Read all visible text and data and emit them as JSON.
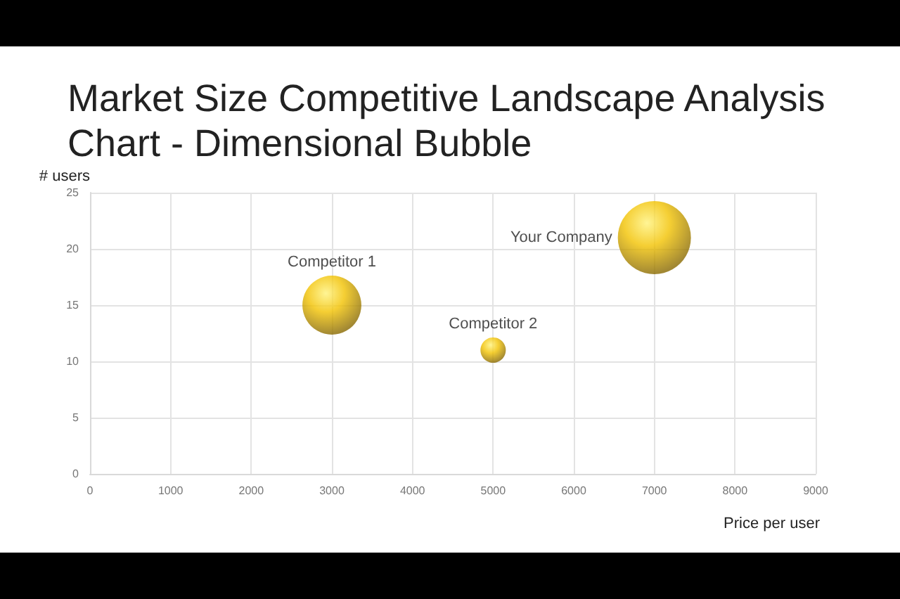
{
  "chart_data": {
    "type": "bubble",
    "title": "Market Size Competitive Landscape Analysis Chart - Dimensional Bubble",
    "xlabel": "Price per user",
    "ylabel": "# users",
    "x": [
      3000,
      5000,
      7000
    ],
    "values": [
      15,
      11,
      21
    ],
    "sizes": [
      0.65,
      0.12,
      1
    ],
    "color": "#f2c200",
    "annotations": [
      {
        "text": "Competitor 1",
        "x": 3000,
        "y": 15
      },
      {
        "text": "Competitor 2",
        "x": 5000,
        "y": 11
      },
      {
        "text": "Your Company",
        "x": 7000,
        "y": 21
      }
    ],
    "xlim": [
      0,
      9000
    ],
    "xticks": [
      0,
      1000,
      2000,
      3000,
      4000,
      5000,
      6000,
      7000,
      8000,
      9000
    ],
    "ylim": [
      0,
      25
    ],
    "yticks": [
      0,
      5,
      10,
      15,
      20,
      25
    ],
    "grid": true
  }
}
